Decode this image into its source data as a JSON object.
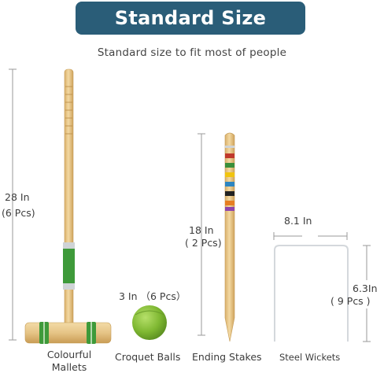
{
  "header": {
    "title": "Standard Size",
    "subtitle": "Standard size to fit most  of people"
  },
  "mallet": {
    "length": "28 In",
    "count": "(6 Pcs)",
    "name_line1": "Colourful",
    "name_line2": "Mallets"
  },
  "ball": {
    "size": "3 In （6 Pcs）",
    "name": "Croquet Balls"
  },
  "stake": {
    "length": "18 In",
    "count": "( 2 Pcs)",
    "name": "Ending Stakes"
  },
  "wicket": {
    "width": "8.1 In",
    "height": "6.3In",
    "count": "( 9 Pcs )",
    "name": "Steel Wickets"
  },
  "colors": {
    "banner": "#2a5d78",
    "wood": "#e9c98a",
    "green": "#3e9a3a",
    "ball": "#8cc63f"
  }
}
